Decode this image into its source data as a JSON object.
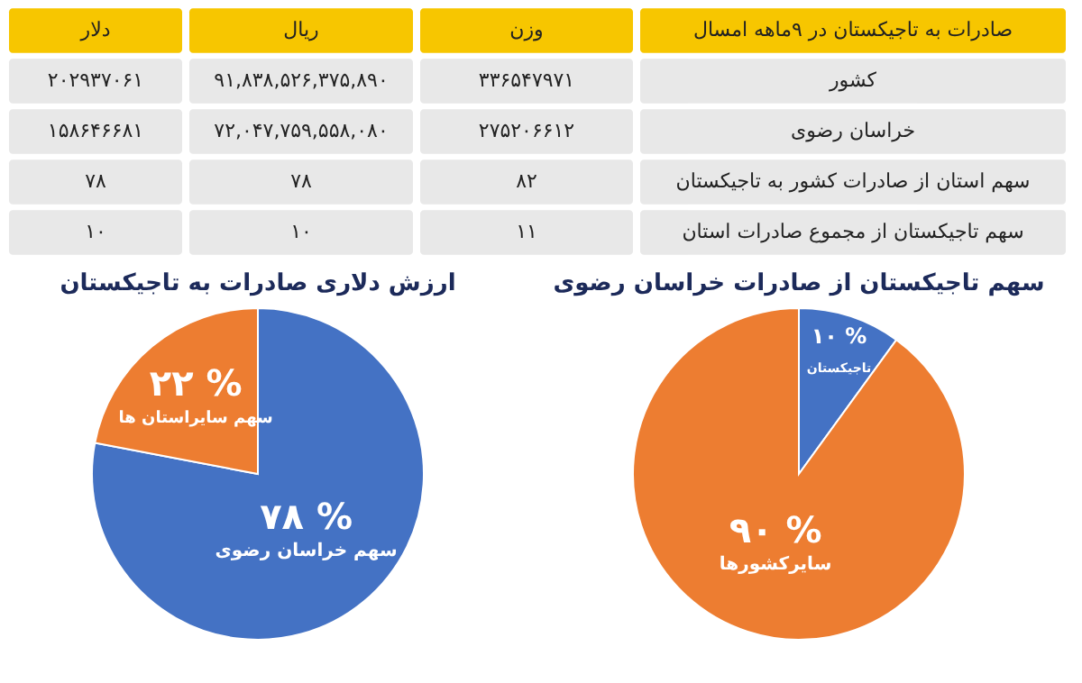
{
  "chart_data": [
    {
      "type": "other",
      "title": "صادرات به تاجیکستان در ۹ماهه امسال",
      "categories": [
        "دلار",
        "ریال",
        "وزن"
      ],
      "y_categories": [
        "کشور",
        "خراسان رضوی",
        "سهم استان از صادرات کشور به تاجیکستان",
        "سهم تاجیکستان از مجموع صادرات استان"
      ],
      "cell_labels": [
        [
          "۲۰۲۹۳۷۰۶۱",
          "۹۱,۸۳۸,۵۲۶,۳۷۵,۸۹۰",
          "۳۳۶۵۴۷۹۷۱"
        ],
        [
          "۱۵۸۶۴۶۶۸۱",
          "۷۲,۰۴۷,۷۵۹,۵۵۸,۰۸۰",
          "۲۷۵۲۰۶۶۱۲"
        ],
        [
          "۷۸",
          "۷۸",
          "۸۲"
        ],
        [
          "۱۰",
          "۱۰",
          "۱۱"
        ]
      ]
    },
    {
      "type": "pie",
      "title": "ارزش دلاری صادرات به تاجیکستان",
      "categories": [
        "سهم خراسان رضوی",
        "سهم سایراستان ها"
      ],
      "values": [
        78,
        22
      ],
      "colors": [
        "#4472c4",
        "#ed7d31"
      ],
      "value_labels": [
        "۷۸ %",
        "۲۲ %"
      ]
    },
    {
      "type": "pie",
      "title": "سهم تاجیکستان از صادرات خراسان رضوی",
      "categories": [
        "تاجیکستان",
        "سایرکشورها"
      ],
      "values": [
        10,
        90
      ],
      "colors": [
        "#4472c4",
        "#ed7d31"
      ],
      "value_labels": [
        "۱۰ %",
        "۹۰ %"
      ]
    }
  ]
}
